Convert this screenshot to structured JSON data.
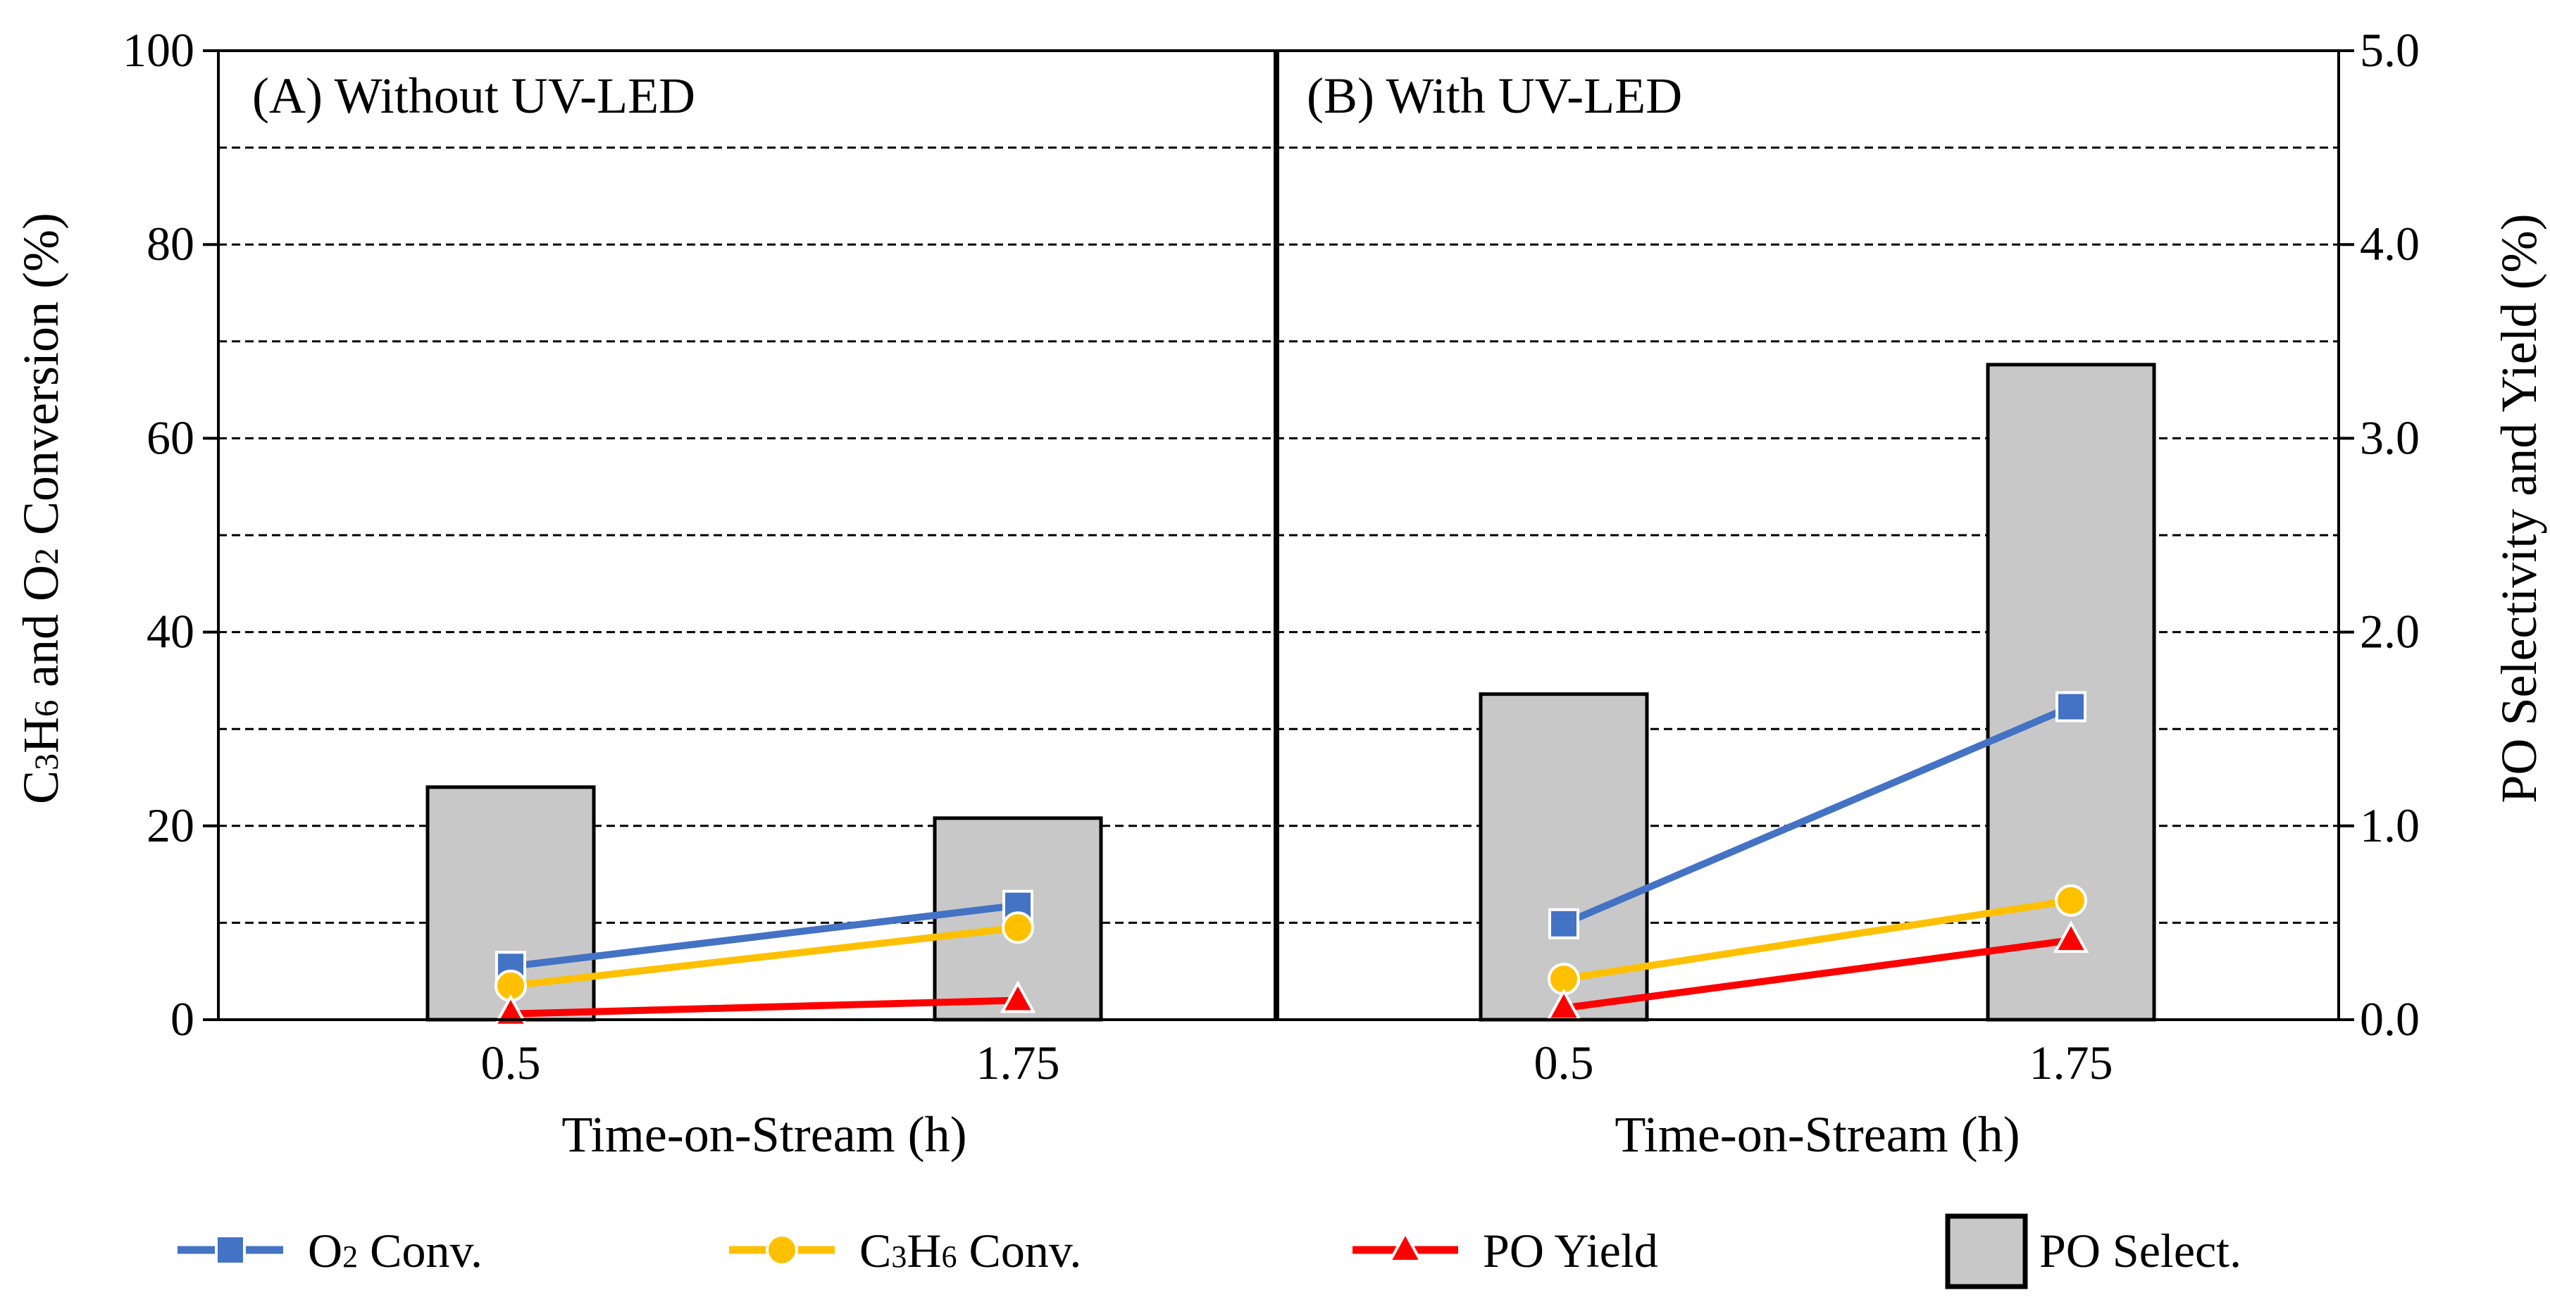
{
  "chart_data": {
    "type": "bar",
    "y_left": {
      "label_parts": [
        "C",
        "3",
        "H",
        "6",
        " and O",
        "2",
        " Conversion (%)"
      ],
      "ticks": [
        "0",
        "20",
        "40",
        "60",
        "80",
        "100"
      ],
      "range": [
        0,
        100
      ]
    },
    "y_right": {
      "label": "PO Selectivity and Yield (%)",
      "ticks": [
        "0.0",
        "1.0",
        "2.0",
        "3.0",
        "4.0",
        "5.0"
      ],
      "range": [
        0,
        5
      ]
    },
    "panels": [
      {
        "label": "(A) Without UV-LED",
        "xlabel": "Time-on-Stream (h)",
        "categories": [
          "0.5",
          "1.75"
        ],
        "bars": {
          "name": "PO Select.",
          "axis": "right",
          "values": [
            1.2,
            1.04
          ]
        },
        "series": [
          {
            "name": "O2 Conv.",
            "axis": "left",
            "values": [
              5.5,
              11.8
            ]
          },
          {
            "name": "C3H6 Conv.",
            "axis": "left",
            "values": [
              3.5,
              9.5
            ]
          },
          {
            "name": "PO Yield",
            "axis": "right",
            "values": [
              0.03,
              0.1
            ]
          }
        ]
      },
      {
        "label": "(B) With UV-LED",
        "xlabel": "Time-on-Stream (h)",
        "categories": [
          "0.5",
          "1.75"
        ],
        "bars": {
          "name": "PO Select.",
          "axis": "right",
          "values": [
            1.68,
            3.38
          ]
        },
        "series": [
          {
            "name": "O2 Conv.",
            "axis": "left",
            "values": [
              9.9,
              32.3
            ]
          },
          {
            "name": "C3H6 Conv.",
            "axis": "left",
            "values": [
              4.2,
              12.3
            ]
          },
          {
            "name": "PO Yield",
            "axis": "right",
            "values": [
              0.06,
              0.41
            ]
          }
        ]
      }
    ],
    "colors": {
      "o2": "#4472c4",
      "c3h6": "#ffc000",
      "po_yield": "#ff0000",
      "bar_fill": "#c8c8c8",
      "bar_stroke": "#000000",
      "marker_stroke": "#ffffff"
    },
    "legend": {
      "items": [
        {
          "key": "o2",
          "parts": [
            "O",
            "2",
            " Conv."
          ]
        },
        {
          "key": "c3h6",
          "parts": [
            "C",
            "3",
            "H",
            "6",
            " Conv."
          ]
        },
        {
          "key": "po_yield",
          "parts": [
            "PO Yield"
          ]
        },
        {
          "key": "bar",
          "parts": [
            "PO Select."
          ]
        }
      ],
      "position": "bottom"
    }
  }
}
